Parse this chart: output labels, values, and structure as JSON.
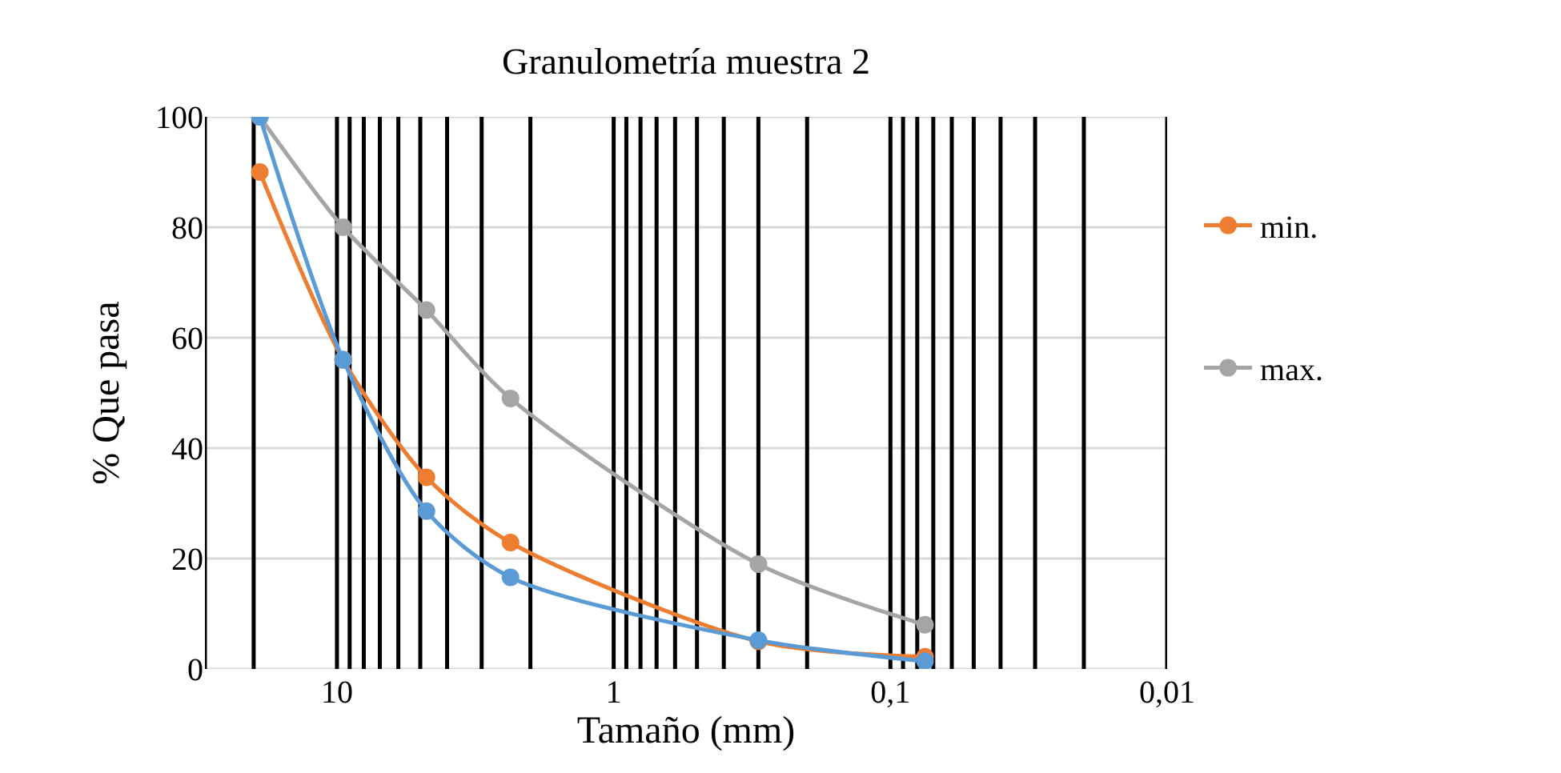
{
  "chart_data": {
    "type": "line",
    "title": "Granulometría muestra 2",
    "xlabel": "Tamaño (mm)",
    "ylabel": "% Que pasa",
    "log": "x",
    "x": [
      19,
      9.5,
      4.75,
      2.36,
      0.3,
      0.075
    ],
    "series": [
      {
        "name": "min.",
        "color": "#ed7d31",
        "values": [
          90,
          56,
          34.7,
          22.9,
          5,
          2.2
        ]
      },
      {
        "name": "max.",
        "color": "#a5a5a5",
        "values": [
          100,
          80,
          65,
          49,
          19,
          8
        ]
      },
      {
        "color": "#5b9bd5",
        "values": [
          100,
          56,
          28.6,
          16.6,
          5.2,
          1.4
        ]
      }
    ],
    "xlim": [
      30,
      0.01
    ],
    "xticks": [
      {
        "value": 30,
        "label": null
      },
      {
        "value": 20,
        "label": null
      },
      {
        "value": 10,
        "label": "10"
      },
      {
        "value": 9,
        "label": null
      },
      {
        "value": 8,
        "label": null
      },
      {
        "value": 7,
        "label": null
      },
      {
        "value": 6,
        "label": null
      },
      {
        "value": 5,
        "label": null
      },
      {
        "value": 4,
        "label": null
      },
      {
        "value": 3,
        "label": null
      },
      {
        "value": 2,
        "label": null
      },
      {
        "value": 1,
        "label": "1"
      },
      {
        "value": 0.9,
        "label": null
      },
      {
        "value": 0.8,
        "label": null
      },
      {
        "value": 0.7,
        "label": null
      },
      {
        "value": 0.6,
        "label": null
      },
      {
        "value": 0.5,
        "label": null
      },
      {
        "value": 0.4,
        "label": null
      },
      {
        "value": 0.3,
        "label": null
      },
      {
        "value": 0.2,
        "label": null
      },
      {
        "value": 0.1,
        "label": "0,1"
      },
      {
        "value": 0.09,
        "label": null
      },
      {
        "value": 0.08,
        "label": null
      },
      {
        "value": 0.07,
        "label": null
      },
      {
        "value": 0.06,
        "label": null
      },
      {
        "value": 0.05,
        "label": null
      },
      {
        "value": 0.04,
        "label": null
      },
      {
        "value": 0.03,
        "label": null
      },
      {
        "value": 0.02,
        "label": null
      },
      {
        "value": 0.01,
        "label": "0,01"
      }
    ],
    "ylim": [
      0,
      100
    ],
    "yticks": [
      0,
      20,
      40,
      60,
      80,
      100
    ],
    "grid": true,
    "legend": "right",
    "marker": "circle",
    "line_style": "solid"
  }
}
